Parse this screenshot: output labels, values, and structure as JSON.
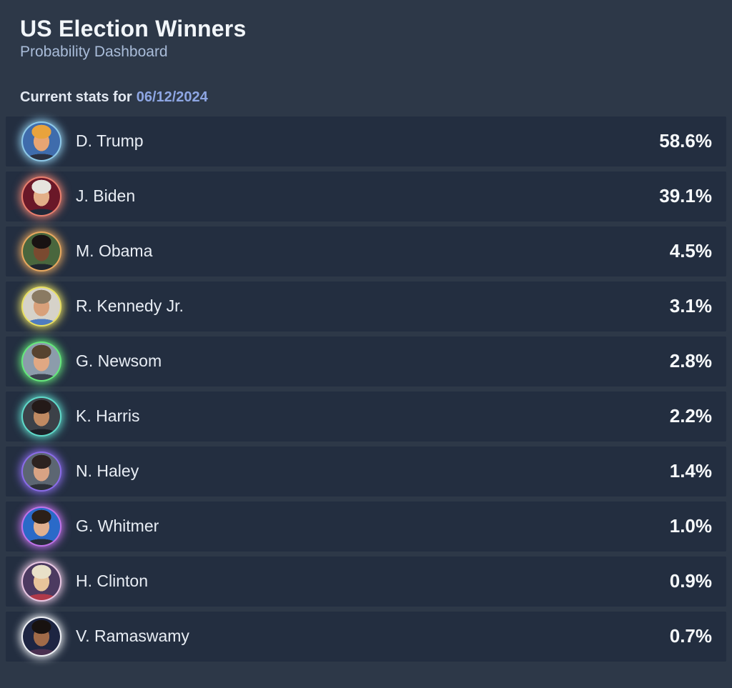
{
  "header": {
    "title": "US Election Winners",
    "subtitle": "Probability Dashboard",
    "stats_label": "Current stats for",
    "stats_date": "06/12/2024"
  },
  "colors": {
    "page_bg": "#2d3848",
    "row_bg": "#232e40",
    "title": "#f2f6fa",
    "subtitle": "#a9bcd9",
    "date_link": "#8ea6e3",
    "name_text": "#e8edf4",
    "percent_text": "#f7fafc"
  },
  "candidates": [
    {
      "name": "D. Trump",
      "percent": "58.6%",
      "avatar_icon": "trump-photo",
      "ring": "#8ec9e8",
      "photo_bg": "#3f6cac",
      "hair": "#e8a33d",
      "skin": "#e8a573",
      "suit": "#2a3040"
    },
    {
      "name": "J. Biden",
      "percent": "39.1%",
      "avatar_icon": "biden-photo",
      "ring": "#e87f6e",
      "photo_bg": "#6a1828",
      "hair": "#e6e3de",
      "skin": "#e3af88",
      "suit": "#1f2838"
    },
    {
      "name": "M. Obama",
      "percent": "4.5%",
      "avatar_icon": "obama-photo",
      "ring": "#e8a85f",
      "photo_bg": "#49663d",
      "hair": "#181212",
      "skin": "#7a4a30",
      "suit": "#20262e"
    },
    {
      "name": "R. Kennedy Jr.",
      "percent": "3.1%",
      "avatar_icon": "kennedy-photo",
      "ring": "#e8df63",
      "photo_bg": "#d6d2c9",
      "hair": "#8a7a62",
      "skin": "#d8a07a",
      "suit": "#4f7cc0"
    },
    {
      "name": "G. Newsom",
      "percent": "2.8%",
      "avatar_icon": "newsom-photo",
      "ring": "#66e87c",
      "photo_bg": "#8c9cab",
      "hair": "#57432f",
      "skin": "#e0a883",
      "suit": "#3a424e"
    },
    {
      "name": "K. Harris",
      "percent": "2.2%",
      "avatar_icon": "harris-photo",
      "ring": "#5fd9c9",
      "photo_bg": "#3c4148",
      "hair": "#241a18",
      "skin": "#c08a62",
      "suit": "#1c1f26"
    },
    {
      "name": "N. Haley",
      "percent": "1.4%",
      "avatar_icon": "haley-photo",
      "ring": "#8a6ce8",
      "photo_bg": "#5c6672",
      "hair": "#2c2220",
      "skin": "#d8a384",
      "suit": "#2c3038"
    },
    {
      "name": "G. Whitmer",
      "percent": "1.0%",
      "avatar_icon": "whitmer-photo",
      "ring": "#c072e8",
      "photo_bg": "#2a6ac8",
      "hair": "#2c2018",
      "skin": "#e0b090",
      "suit": "#262c3a"
    },
    {
      "name": "H. Clinton",
      "percent": "0.9%",
      "avatar_icon": "clinton-photo",
      "ring": "#e8c6e2",
      "photo_bg": "#4c3a60",
      "hair": "#e8e0c8",
      "skin": "#e8c49a",
      "suit": "#b03a4a"
    },
    {
      "name": "V. Ramaswamy",
      "percent": "0.7%",
      "avatar_icon": "ramaswamy-photo",
      "ring": "#eef0f4",
      "photo_bg": "#1d2542",
      "hair": "#181210",
      "skin": "#a06a48",
      "suit": "#4a3050"
    }
  ],
  "chart_data": {
    "type": "table",
    "title": "US Election Winners",
    "subtitle": "Probability Dashboard",
    "date": "06/12/2024",
    "categories": [
      "D. Trump",
      "J. Biden",
      "M. Obama",
      "R. Kennedy Jr.",
      "G. Newsom",
      "K. Harris",
      "N. Haley",
      "G. Whitmer",
      "H. Clinton",
      "V. Ramaswamy"
    ],
    "values": [
      58.6,
      39.1,
      4.5,
      3.1,
      2.8,
      2.2,
      1.4,
      1.0,
      0.9,
      0.7
    ],
    "unit": "%"
  }
}
